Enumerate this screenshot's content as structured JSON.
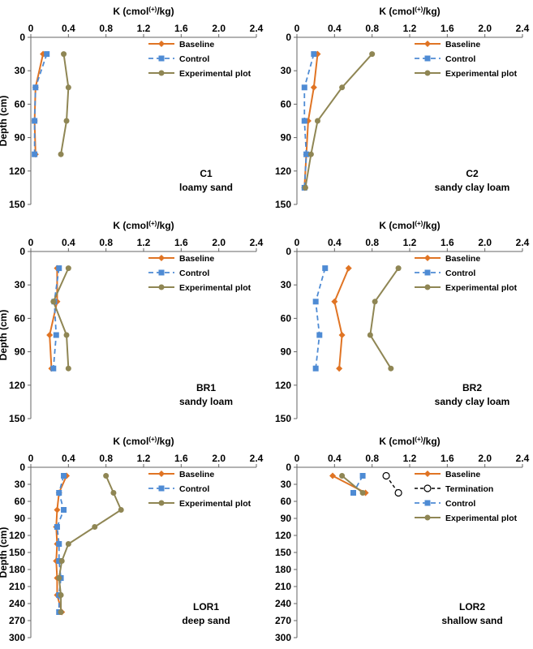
{
  "chart_data": [
    {
      "type": "line",
      "panel": "C1",
      "xlabel": "K (cmol(+)/kg)",
      "ylabel": "Depth (cm)",
      "xlim": [
        0,
        2.4
      ],
      "ylim": [
        0,
        150
      ],
      "xticks": [
        "0",
        "0.4",
        "0.8",
        "1.2",
        "1.6",
        "2.0",
        "2.4"
      ],
      "yticks": [
        "0",
        "30",
        "60",
        "90",
        "120",
        "150"
      ],
      "annotation": [
        "C1",
        "loamy sand"
      ],
      "series": [
        {
          "name": "Baseline",
          "points": [
            [
              0.13,
              15
            ],
            [
              0.05,
              45
            ],
            [
              0.04,
              75
            ],
            [
              0.05,
              105
            ]
          ]
        },
        {
          "name": "Control",
          "points": [
            [
              0.17,
              15
            ],
            [
              0.05,
              45
            ],
            [
              0.04,
              75
            ],
            [
              0.04,
              105
            ]
          ]
        },
        {
          "name": "Experimental plot",
          "points": [
            [
              0.35,
              15
            ],
            [
              0.4,
              45
            ],
            [
              0.38,
              75
            ],
            [
              0.32,
              105
            ]
          ]
        }
      ]
    },
    {
      "type": "line",
      "panel": "C2",
      "xlabel": "K (cmol(+)/kg)",
      "ylabel": "",
      "xlim": [
        0,
        2.4
      ],
      "ylim": [
        0,
        150
      ],
      "xticks": [
        "0",
        "0.4",
        "0.8",
        "1.2",
        "1.6",
        "2.0",
        "2.4"
      ],
      "yticks": [
        "0",
        "30",
        "60",
        "90",
        "120",
        "150"
      ],
      "annotation": [
        "C2",
        "sandy clay loam"
      ],
      "series": [
        {
          "name": "Baseline",
          "points": [
            [
              0.22,
              15
            ],
            [
              0.18,
              45
            ],
            [
              0.12,
              75
            ],
            [
              0.1,
              105
            ],
            [
              0.08,
              135
            ]
          ]
        },
        {
          "name": "Control",
          "points": [
            [
              0.18,
              15
            ],
            [
              0.08,
              45
            ],
            [
              0.08,
              75
            ],
            [
              0.1,
              105
            ],
            [
              0.08,
              135
            ]
          ]
        },
        {
          "name": "Experimental plot",
          "points": [
            [
              0.8,
              15
            ],
            [
              0.48,
              45
            ],
            [
              0.22,
              75
            ],
            [
              0.15,
              105
            ],
            [
              0.09,
              135
            ]
          ]
        }
      ]
    },
    {
      "type": "line",
      "panel": "BR1",
      "xlabel": "K (cmol(+)/kg)",
      "ylabel": "Depth (cm)",
      "xlim": [
        0,
        2.4
      ],
      "ylim": [
        0,
        150
      ],
      "xticks": [
        "0",
        "0.4",
        "0.8",
        "1.2",
        "1.6",
        "2.0",
        "2.4"
      ],
      "yticks": [
        "0",
        "30",
        "60",
        "90",
        "120",
        "150"
      ],
      "annotation": [
        "BR1",
        "sandy loam"
      ],
      "series": [
        {
          "name": "Baseline",
          "points": [
            [
              0.28,
              15
            ],
            [
              0.28,
              45
            ],
            [
              0.2,
              75
            ],
            [
              0.22,
              105
            ]
          ]
        },
        {
          "name": "Control",
          "points": [
            [
              0.3,
              15
            ],
            [
              0.25,
              45
            ],
            [
              0.27,
              75
            ],
            [
              0.24,
              105
            ]
          ]
        },
        {
          "name": "Experimental plot",
          "points": [
            [
              0.4,
              15
            ],
            [
              0.24,
              45
            ],
            [
              0.38,
              75
            ],
            [
              0.4,
              105
            ]
          ]
        }
      ]
    },
    {
      "type": "line",
      "panel": "BR2",
      "xlabel": "K (cmol(+)/kg)",
      "ylabel": "",
      "xlim": [
        0,
        2.4
      ],
      "ylim": [
        0,
        150
      ],
      "xticks": [
        "0",
        "0.4",
        "0.8",
        "1.2",
        "1.6",
        "2.0",
        "2.4"
      ],
      "yticks": [
        "0",
        "30",
        "60",
        "90",
        "120",
        "150"
      ],
      "annotation": [
        "BR2",
        "sandy clay loam"
      ],
      "series": [
        {
          "name": "Baseline",
          "points": [
            [
              0.55,
              15
            ],
            [
              0.4,
              45
            ],
            [
              0.48,
              75
            ],
            [
              0.45,
              105
            ]
          ]
        },
        {
          "name": "Control",
          "points": [
            [
              0.3,
              15
            ],
            [
              0.2,
              45
            ],
            [
              0.24,
              75
            ],
            [
              0.2,
              105
            ]
          ]
        },
        {
          "name": "Experimental plot",
          "points": [
            [
              1.08,
              15
            ],
            [
              0.83,
              45
            ],
            [
              0.78,
              75
            ],
            [
              1.0,
              105
            ]
          ]
        }
      ]
    },
    {
      "type": "line",
      "panel": "LOR1",
      "xlabel": "K (cmol(+)/kg)",
      "ylabel": "Depth (cm)",
      "xlim": [
        0,
        2.4
      ],
      "ylim": [
        0,
        300
      ],
      "xticks": [
        "0",
        "0.4",
        "0.8",
        "1.2",
        "1.6",
        "2.0",
        "2.4"
      ],
      "yticks": [
        "0",
        "30",
        "60",
        "90",
        "120",
        "150",
        "180",
        "210",
        "240",
        "270",
        "300"
      ],
      "annotation": [
        "LOR1",
        "deep sand"
      ],
      "series": [
        {
          "name": "Baseline",
          "points": [
            [
              0.38,
              15
            ],
            [
              0.3,
              45
            ],
            [
              0.28,
              75
            ],
            [
              0.27,
              105
            ],
            [
              0.28,
              135
            ],
            [
              0.27,
              165
            ],
            [
              0.28,
              195
            ],
            [
              0.28,
              225
            ],
            [
              0.33,
              255
            ]
          ]
        },
        {
          "name": "Control",
          "points": [
            [
              0.35,
              15
            ],
            [
              0.3,
              45
            ],
            [
              0.35,
              75
            ],
            [
              0.28,
              105
            ],
            [
              0.3,
              135
            ],
            [
              0.3,
              165
            ],
            [
              0.32,
              195
            ],
            [
              0.3,
              225
            ],
            [
              0.3,
              255
            ]
          ]
        },
        {
          "name": "Experimental plot",
          "points": [
            [
              0.8,
              15
            ],
            [
              0.88,
              45
            ],
            [
              0.96,
              75
            ],
            [
              0.68,
              105
            ],
            [
              0.4,
              135
            ],
            [
              0.33,
              165
            ],
            [
              0.3,
              195
            ],
            [
              0.32,
              225
            ],
            [
              0.32,
              255
            ]
          ]
        }
      ]
    },
    {
      "type": "line",
      "panel": "LOR2",
      "xlabel": "K (cmol(+)/kg)",
      "ylabel": "",
      "xlim": [
        0,
        2.4
      ],
      "ylim": [
        0,
        300
      ],
      "xticks": [
        "0",
        "0.4",
        "0.8",
        "1.2",
        "1.6",
        "2.0",
        "2.4"
      ],
      "yticks": [
        "0",
        "30",
        "60",
        "90",
        "120",
        "150",
        "180",
        "210",
        "240",
        "270",
        "300"
      ],
      "annotation": [
        "LOR2",
        "shallow sand"
      ],
      "series": [
        {
          "name": "Baseline",
          "points": [
            [
              0.38,
              15
            ],
            [
              0.73,
              45
            ]
          ]
        },
        {
          "name": "Termination",
          "points": [
            [
              0.95,
              15
            ],
            [
              1.08,
              45
            ]
          ]
        },
        {
          "name": "Control",
          "points": [
            [
              0.7,
              15
            ],
            [
              0.6,
              45
            ]
          ]
        },
        {
          "name": "Experimental plot",
          "points": [
            [
              0.48,
              15
            ],
            [
              0.7,
              45
            ]
          ]
        }
      ]
    }
  ],
  "series_colors": {
    "Baseline": "#E07424",
    "Control": "#4E8BD4",
    "Experimental plot": "#8F8654",
    "Termination": "#000000"
  }
}
